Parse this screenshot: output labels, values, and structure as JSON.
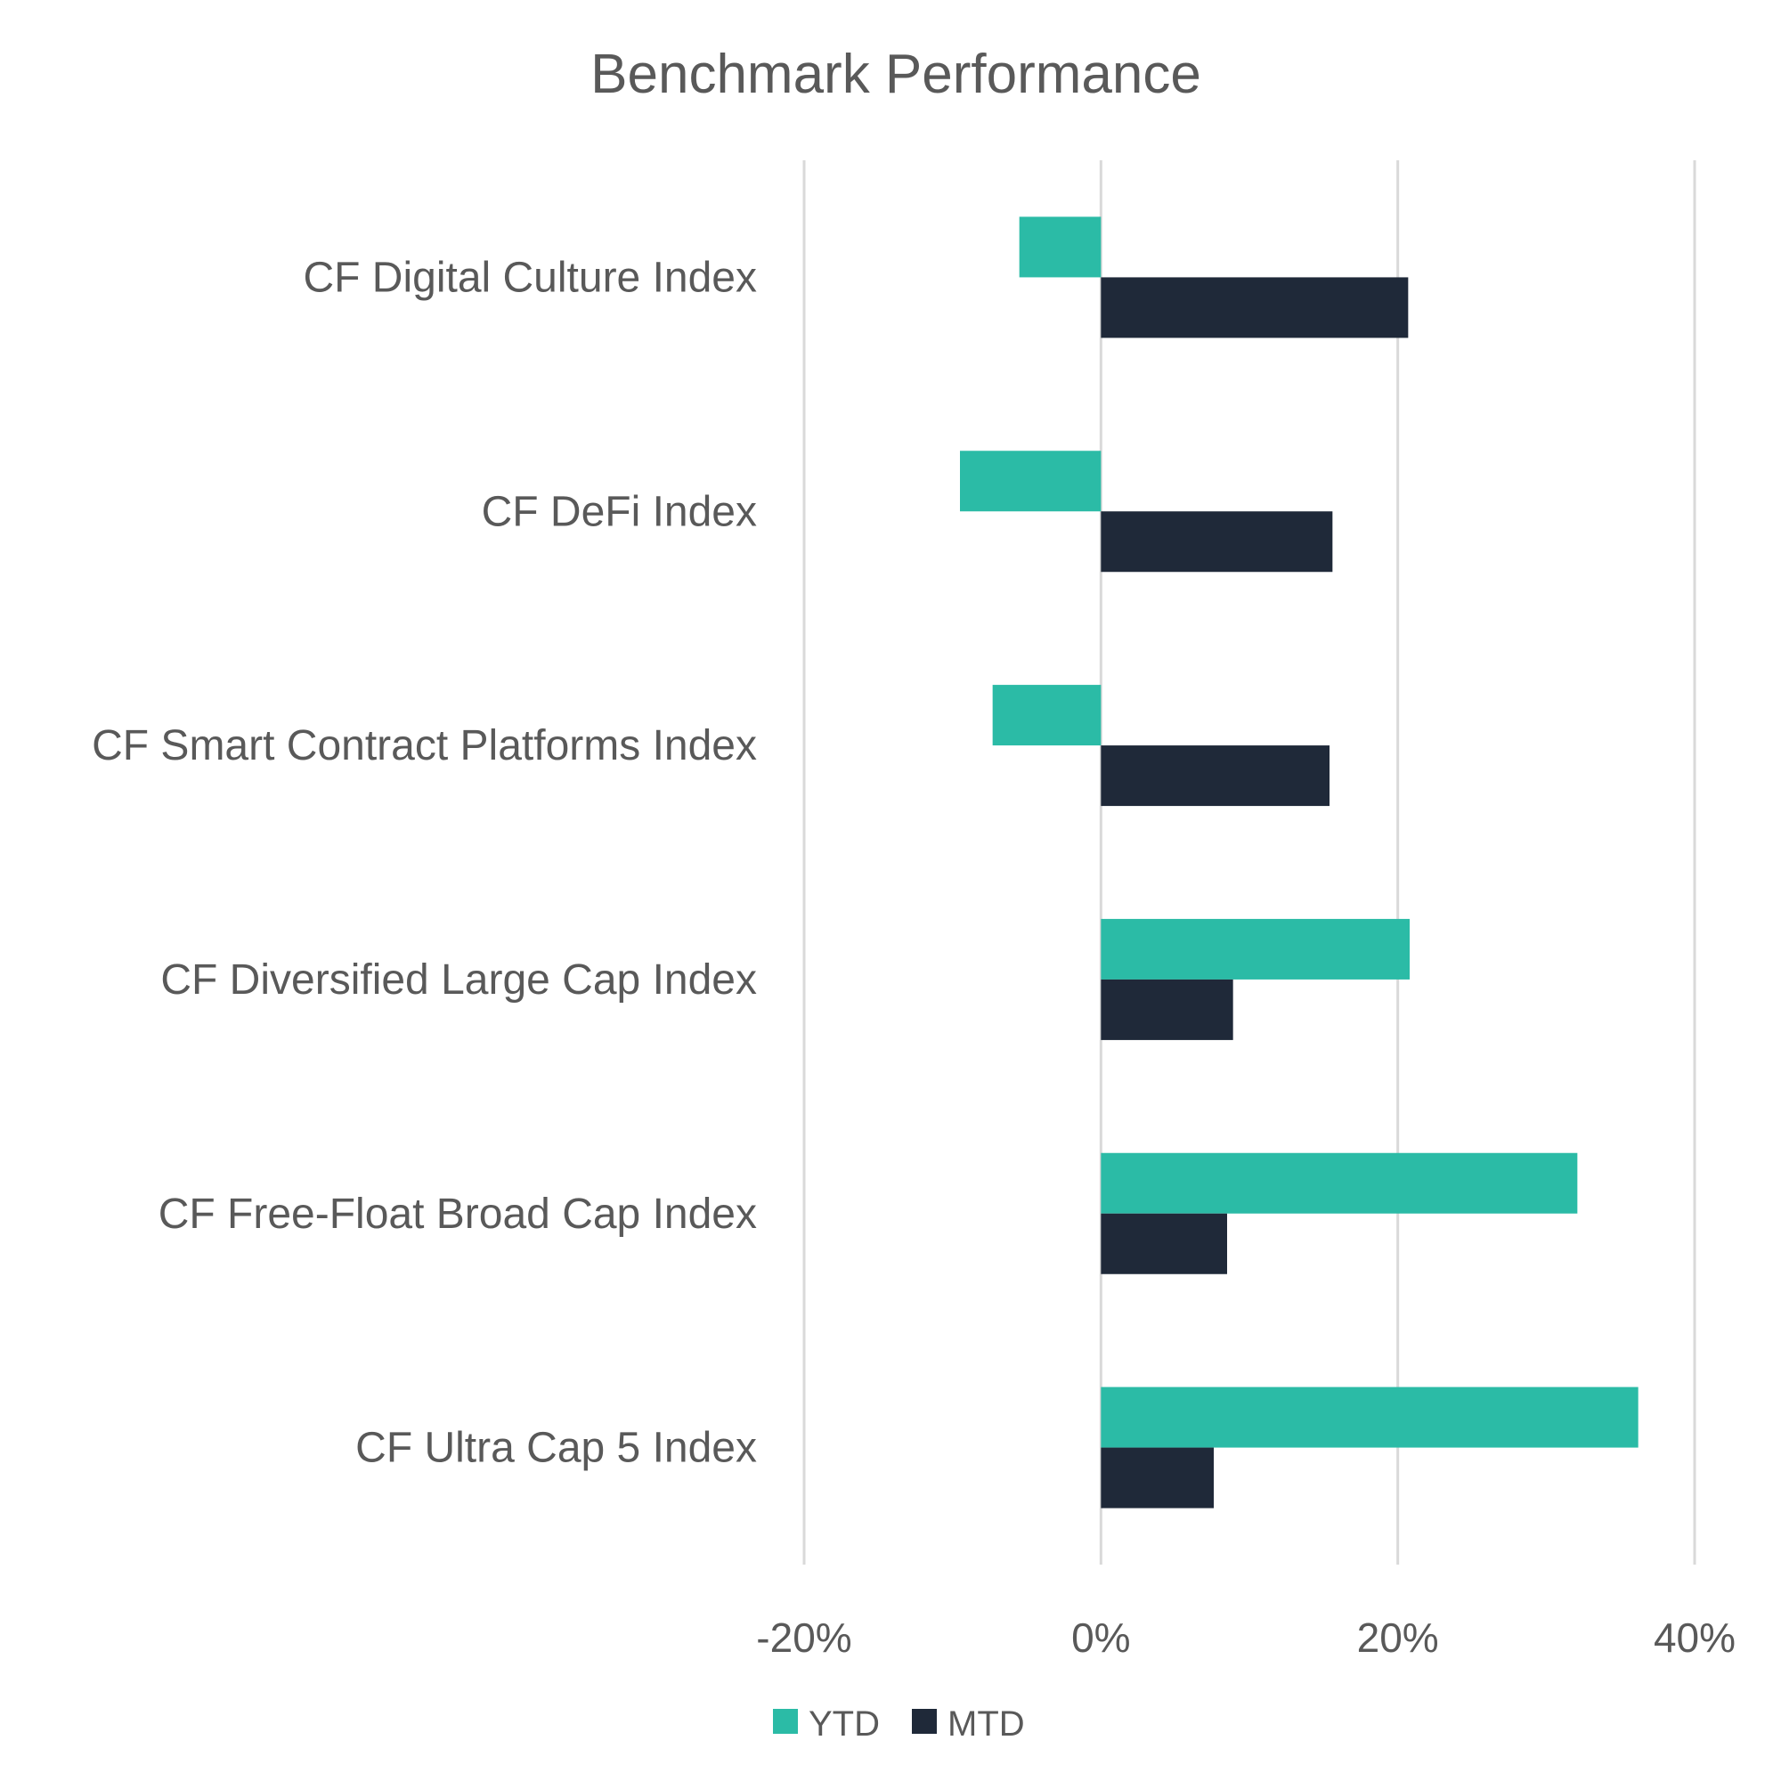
{
  "chart_data": {
    "type": "bar",
    "orientation": "horizontal",
    "title": "Benchmark Performance",
    "xlabel": "",
    "ylabel": "",
    "categories": [
      "CF Digital Culture Index",
      "CF DeFi Index",
      "CF Smart Contract Platforms Index",
      "CF Diversified Large Cap Index",
      "CF Free-Float Broad Cap Index",
      "CF Ultra Cap 5 Index"
    ],
    "series": [
      {
        "name": "YTD",
        "color": "#2bbba6",
        "values": [
          -5.5,
          -9.5,
          -7.3,
          20.8,
          32.1,
          36.2
        ]
      },
      {
        "name": "MTD",
        "color": "#1f2939",
        "values": [
          20.7,
          15.6,
          15.4,
          8.9,
          8.5,
          7.6
        ]
      }
    ],
    "xlim": [
      -20,
      40
    ],
    "xticks": [
      -20,
      0,
      20,
      40
    ],
    "xtick_labels": [
      "-20%",
      "0%",
      "20%",
      "40%"
    ],
    "grid": true,
    "legend_position": "bottom-center"
  }
}
